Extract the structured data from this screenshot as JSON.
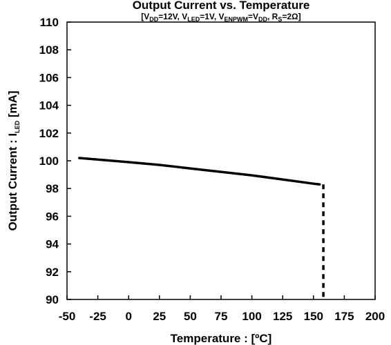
{
  "chart_data": {
    "type": "line",
    "title": "Output Current vs. Temperature",
    "subtitle": {
      "parts": [
        {
          "text": "[V",
          "sub": false
        },
        {
          "text": "DD",
          "sub": true
        },
        {
          "text": "=12V, V",
          "sub": false
        },
        {
          "text": "LED",
          "sub": true
        },
        {
          "text": "=1V, V",
          "sub": false
        },
        {
          "text": "ENPWM",
          "sub": true
        },
        {
          "text": "=V",
          "sub": false
        },
        {
          "text": "DD",
          "sub": true
        },
        {
          "text": ", R",
          "sub": false
        },
        {
          "text": "S",
          "sub": true
        },
        {
          "text": "=2Ω]",
          "sub": false
        }
      ]
    },
    "xlabel": "Temperature : [ºC]",
    "ylabel": {
      "parts": [
        {
          "text": "Output Current : I",
          "sub": false
        },
        {
          "text": "LED",
          "sub": true
        },
        {
          "text": " [mA]",
          "sub": false
        }
      ]
    },
    "xlim": [
      -50,
      200
    ],
    "ylim": [
      90,
      110
    ],
    "xticks": [
      -50,
      -25,
      0,
      25,
      50,
      75,
      100,
      125,
      150,
      175,
      200
    ],
    "yticks": [
      90,
      92,
      94,
      96,
      98,
      100,
      102,
      104,
      106,
      108,
      110
    ],
    "grid": false,
    "series": [
      {
        "style": "solid",
        "color": "#000000",
        "x": [
          -40,
          0,
          25,
          50,
          75,
          100,
          125,
          150,
          155
        ],
        "y": [
          100.2,
          99.9,
          99.7,
          99.45,
          99.2,
          98.95,
          98.65,
          98.35,
          98.3
        ]
      },
      {
        "style": "dashed",
        "color": "#000000",
        "x": [
          158,
          158
        ],
        "y": [
          98.3,
          90
        ]
      }
    ]
  }
}
